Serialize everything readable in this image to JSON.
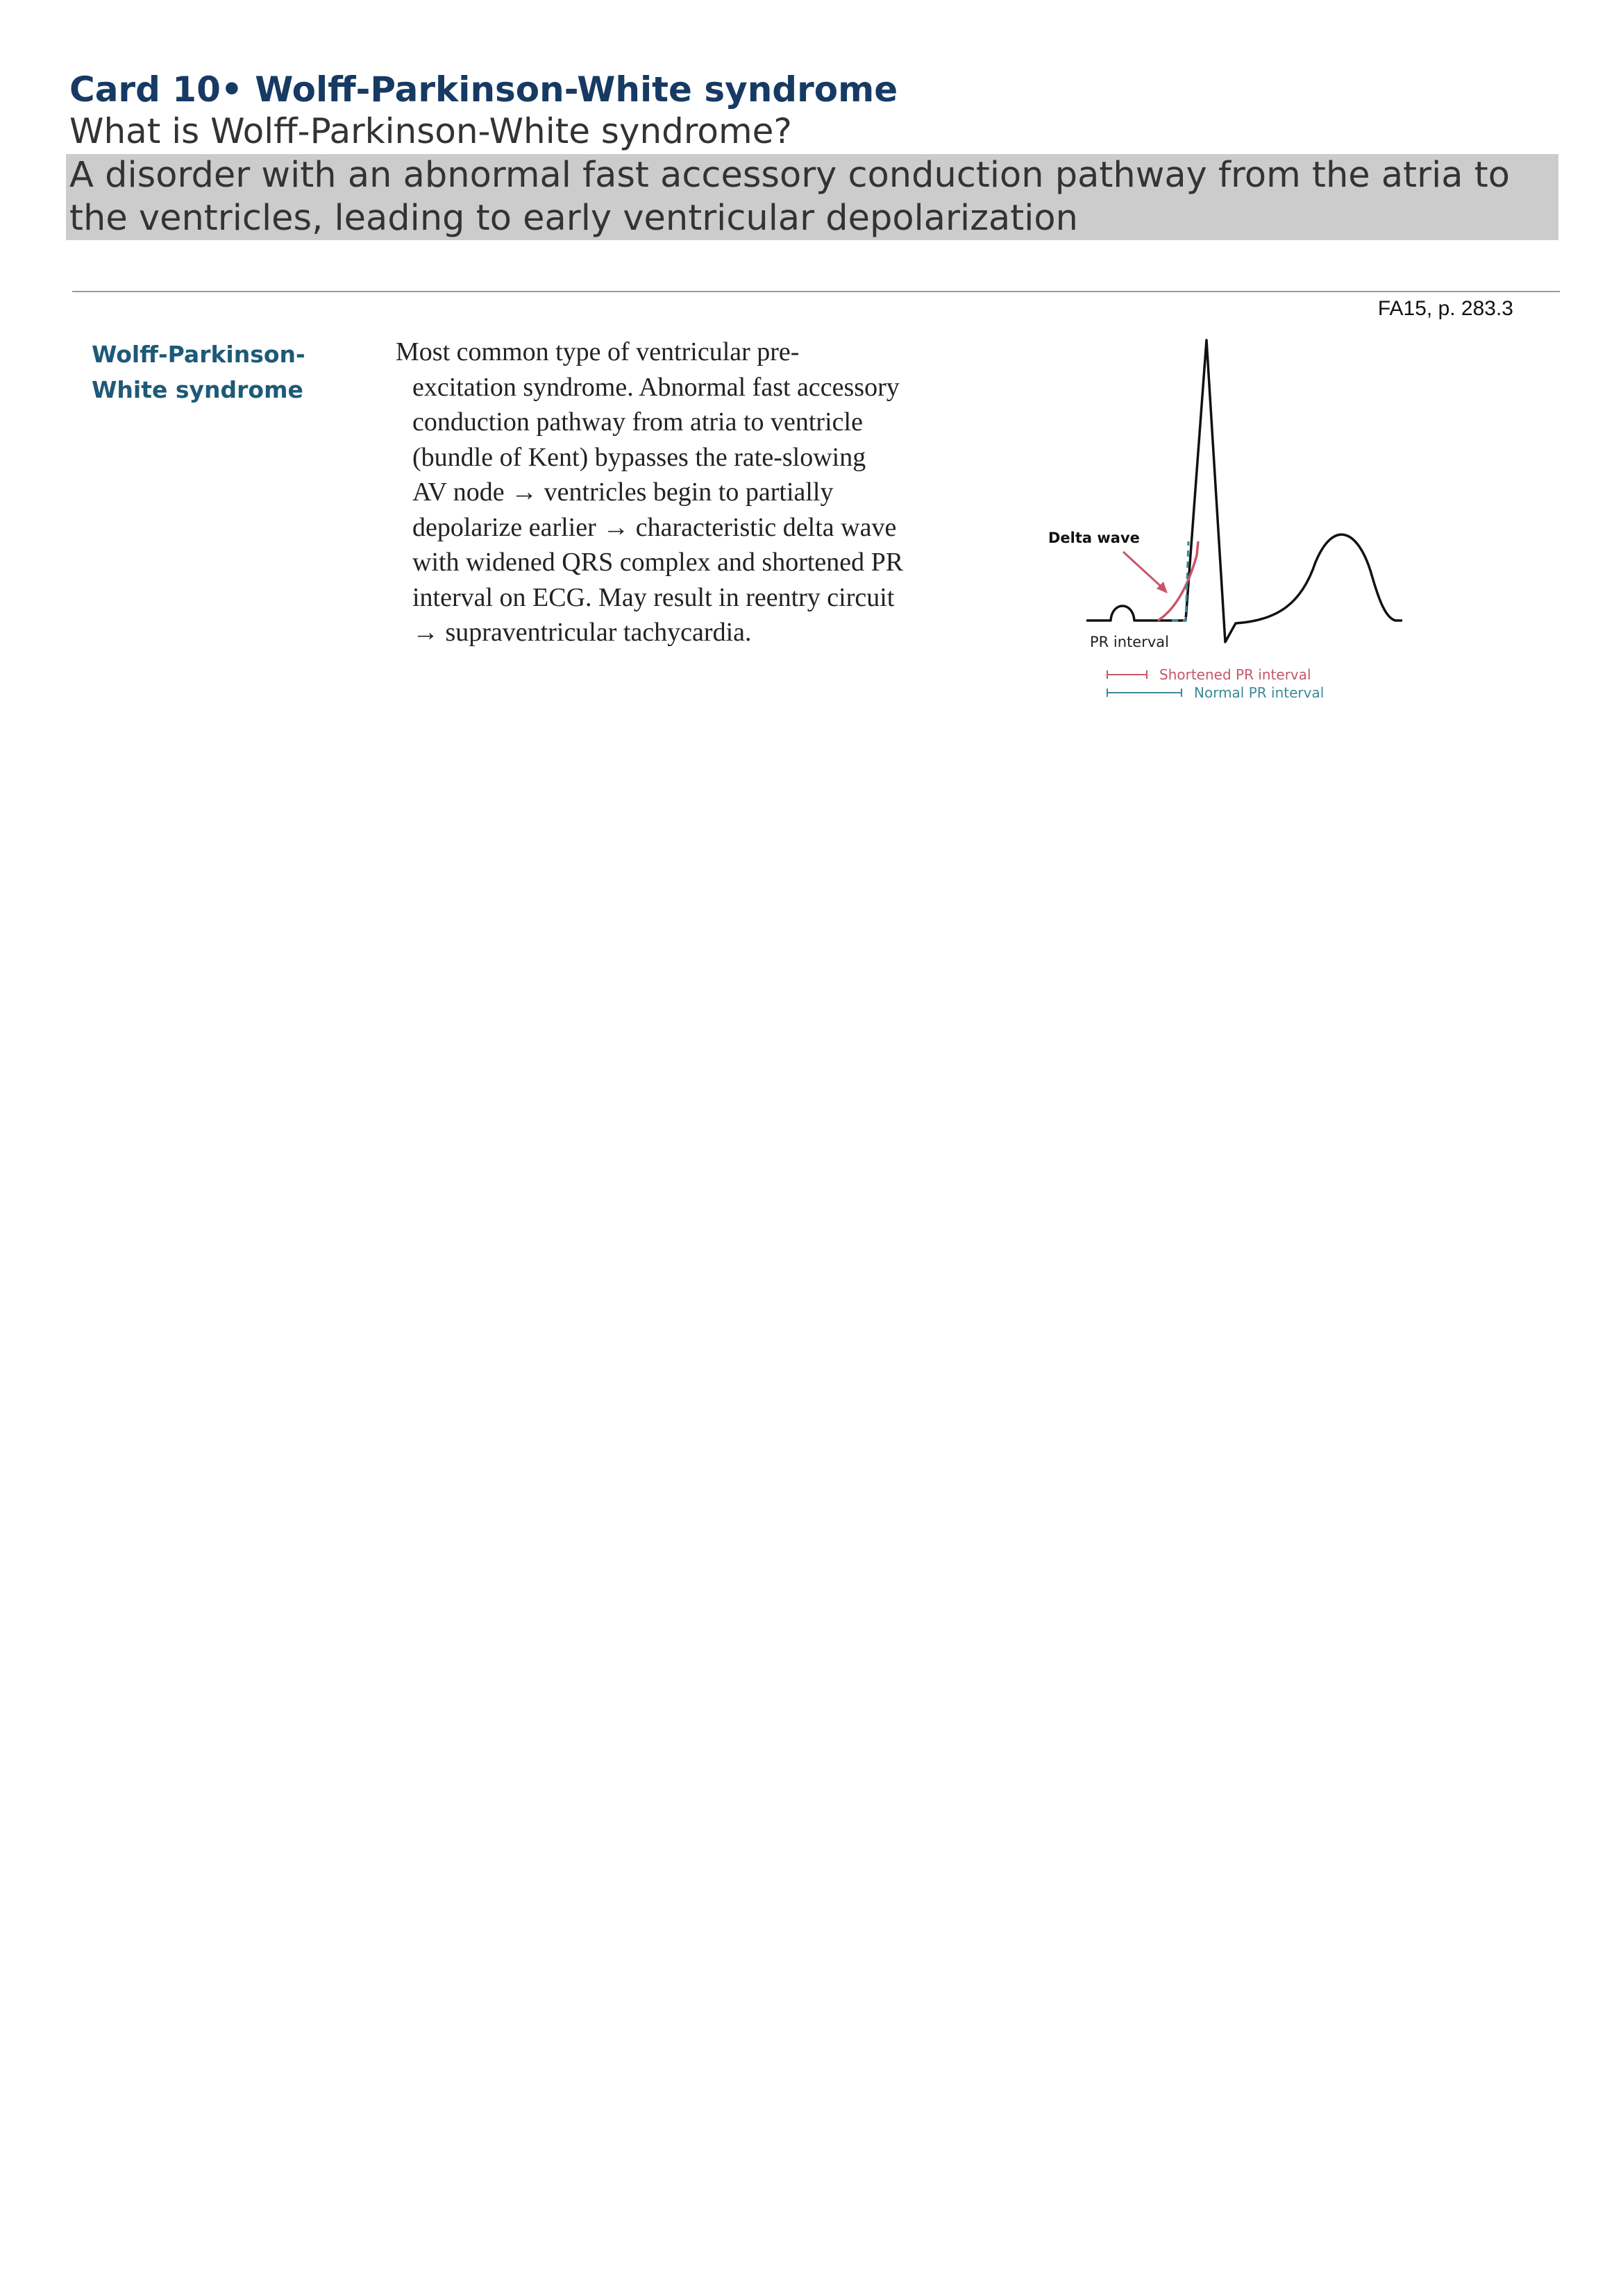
{
  "card": {
    "title": "Card 10• Wolff-Parkinson-White syndrome",
    "question": "What is Wolff-Parkinson-White syndrome?",
    "answer": "A disorder with an abnormal fast accessory conduction pathway from the atria to the ventricles, leading to early ventricular depolarization"
  },
  "source": "FA15, p. 283.3",
  "topic": "Wolff-Parkinson-White syndrome",
  "body_lines": [
    "Most common type of ventricular pre-",
    "excitation syndrome. Abnormal fast accessory",
    "conduction pathway from atria to ventricle",
    "(bundle of Kent) bypasses the rate-slowing",
    "AV node → ventricles begin to partially",
    "depolarize earlier → characteristic delta wave",
    "with widened QRS complex and shortened PR",
    "interval on ECG. May result in reentry circuit",
    "→ supraventricular tachycardia."
  ],
  "figure": {
    "delta_wave_label": "Delta wave",
    "pr_interval_label": "PR interval",
    "legend": {
      "shortened": "Shortened PR interval",
      "normal": "Normal PR interval"
    },
    "colors": {
      "trace": "#111111",
      "shortened": "#c8566a",
      "normal": "#3b8a96"
    }
  }
}
